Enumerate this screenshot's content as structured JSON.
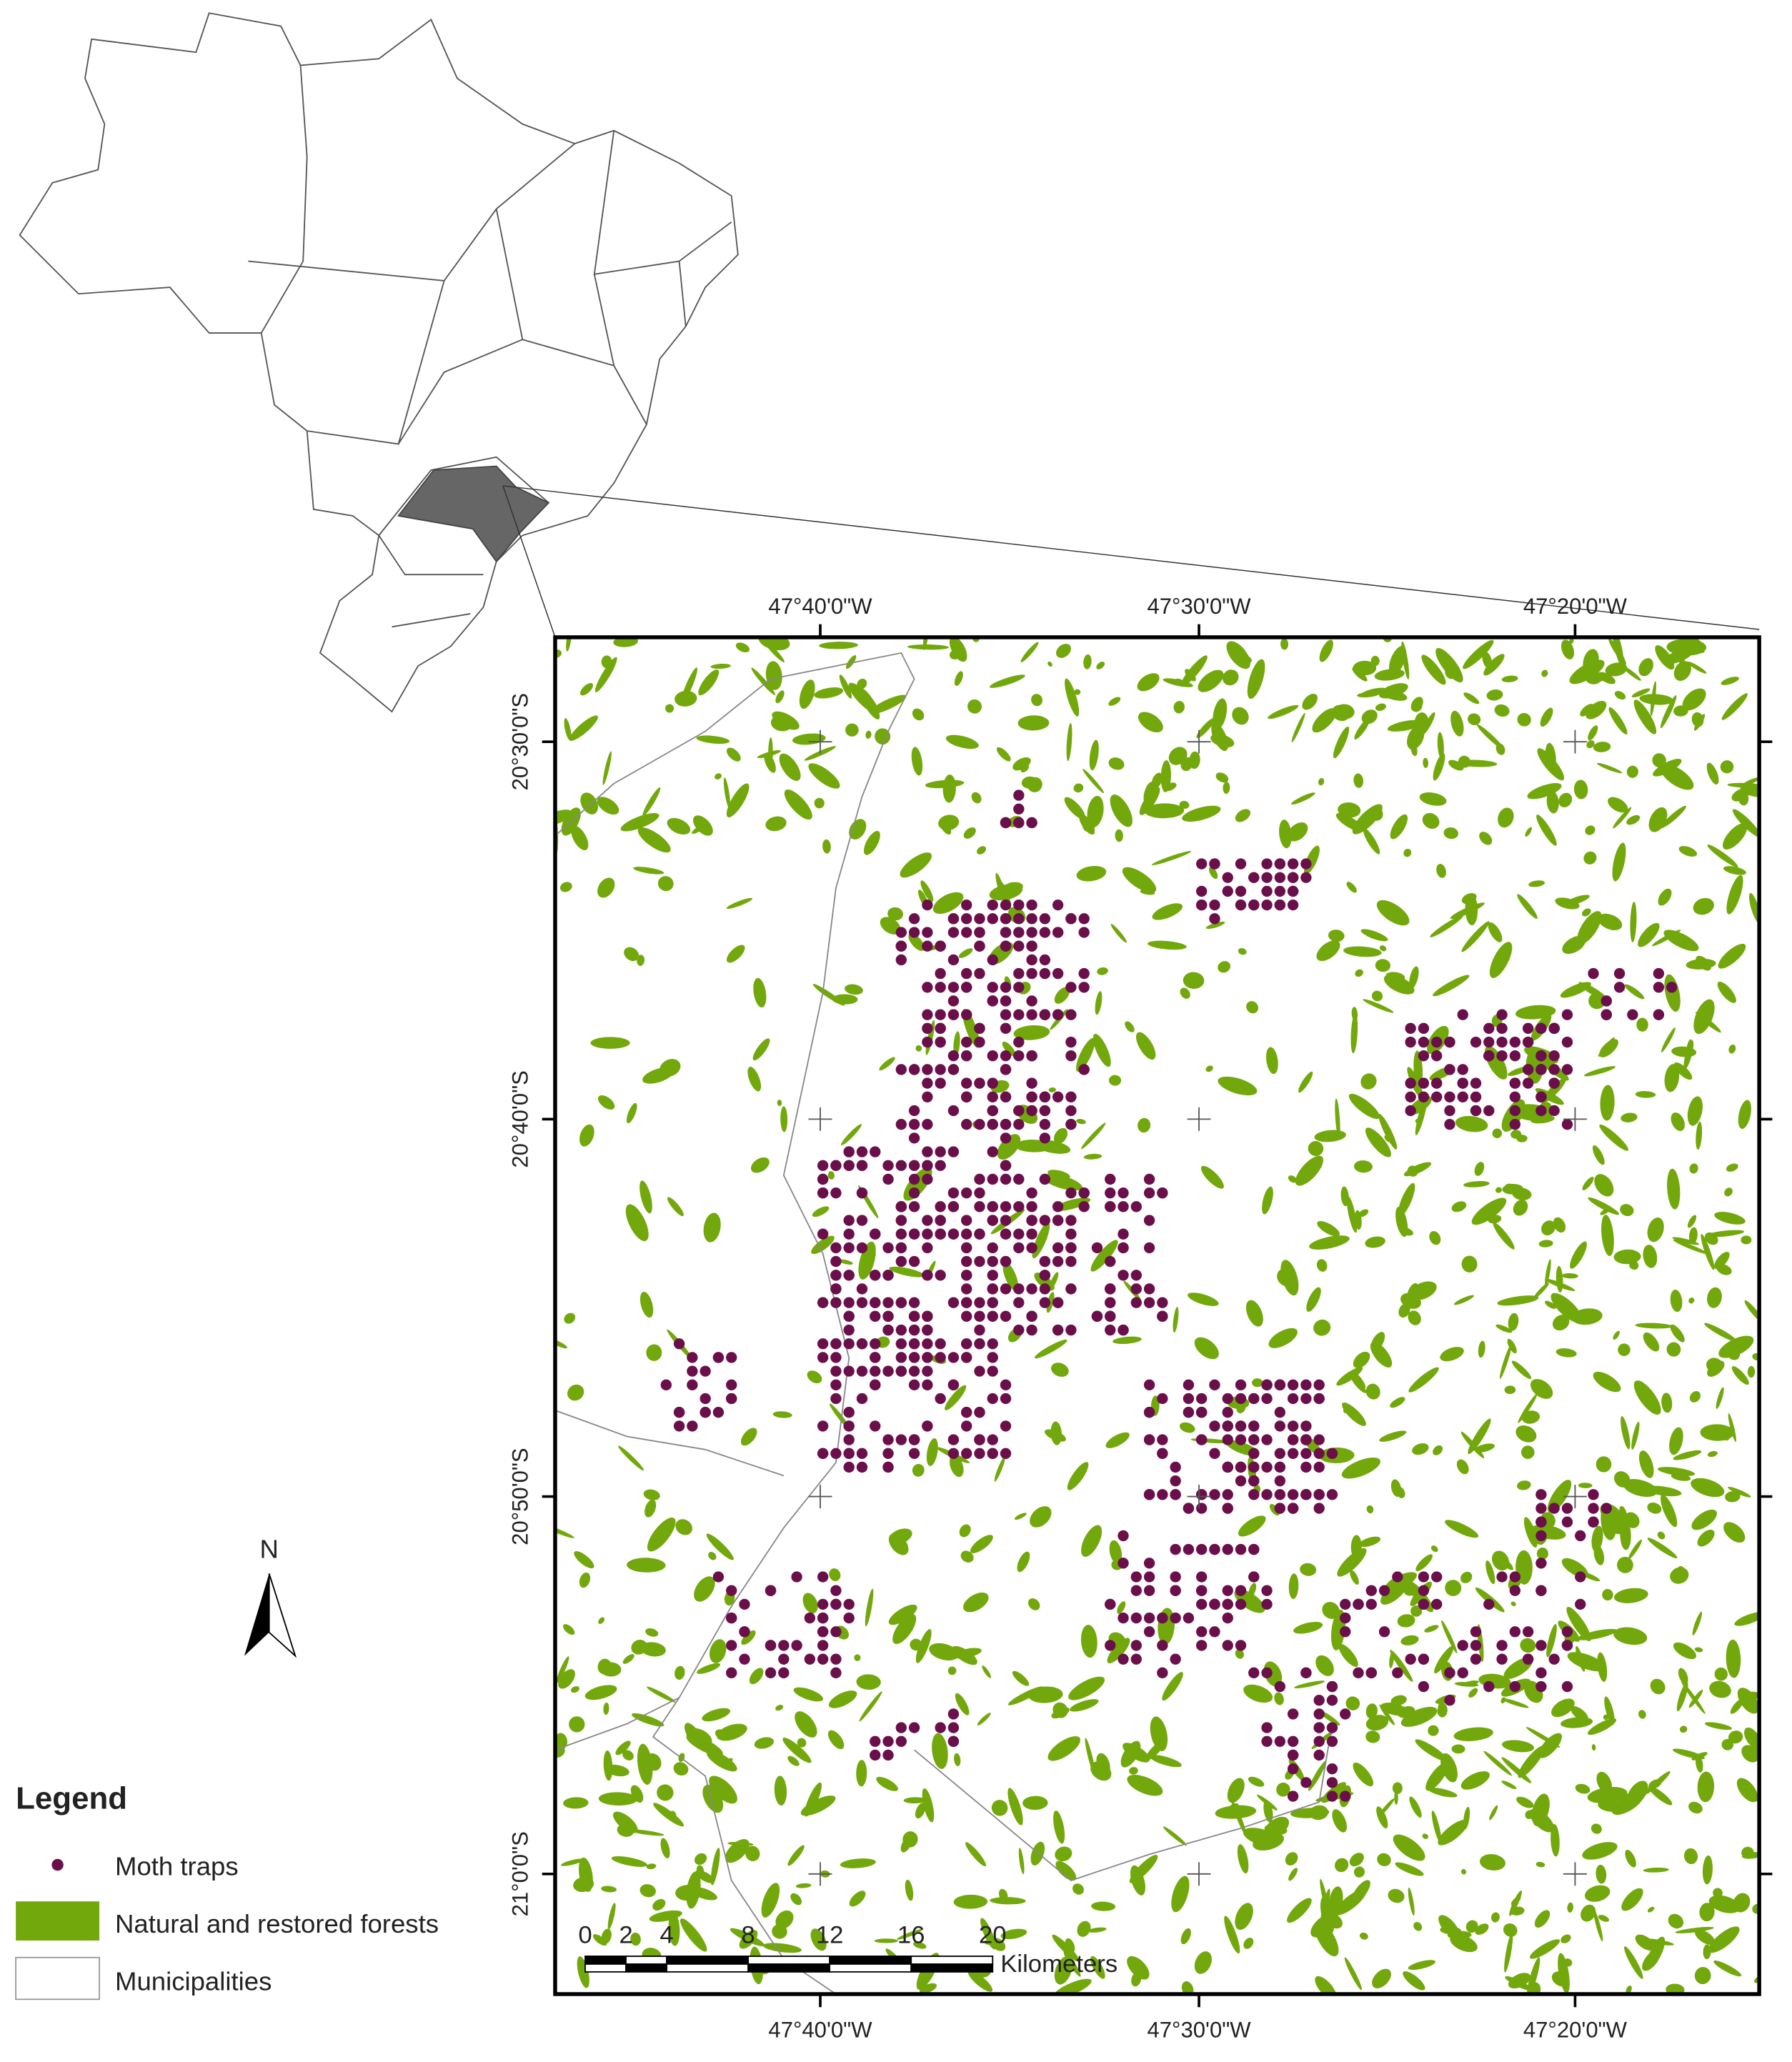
{
  "map": {
    "top_labels": [
      "47°40'0\"W",
      "47°30'0\"W",
      "47°20'0\"W"
    ],
    "bottom_labels": [
      "47°40'0\"W",
      "47°30'0\"W",
      "47°20'0\"W"
    ],
    "left_labels": [
      "20°30'0\"S",
      "20°40'0\"S",
      "20°50'0\"S",
      "21°0'0\"S"
    ],
    "scale_bar": {
      "ticks": [
        0,
        2,
        4,
        8,
        12,
        16,
        20
      ],
      "unit": "Kilometers"
    },
    "north": "N",
    "legend": {
      "title": "Legend",
      "items": [
        "Moth traps",
        "Natural and restored forests",
        "Municipalities"
      ]
    }
  }
}
